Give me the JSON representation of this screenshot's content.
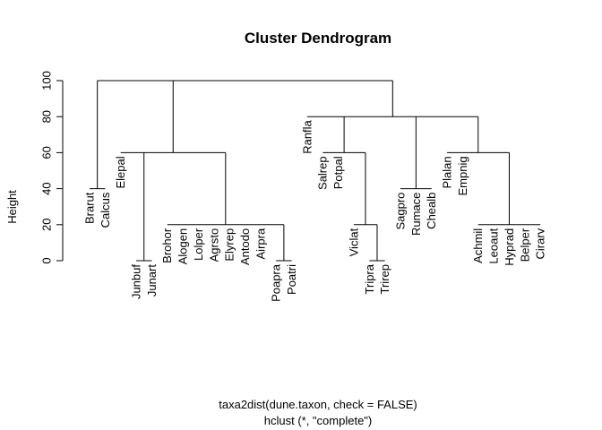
{
  "chart_data": {
    "type": "dendrogram",
    "title": "Cluster Dendrogram",
    "ylabel": "Height",
    "sub1": "taxa2dist(dune.taxon, check = FALSE)",
    "sub2": "hclust (*, \"complete\")",
    "yticks": [
      "0",
      "20",
      "40",
      "60",
      "80",
      "100"
    ],
    "ylim": [
      0,
      100
    ],
    "leaves": [
      "Brarut",
      "Calcus",
      "Elepal",
      "Junbuf",
      "Junart",
      "Brohor",
      "Alogen",
      "Lolper",
      "Agrsto",
      "Elyrep",
      "Antodo",
      "Airpra",
      "Poapra",
      "Poatri",
      "Ranfla",
      "Salrep",
      "Potpal",
      "Viclat",
      "Tripra",
      "Trirep",
      "Sagpro",
      "Rumace",
      "Chealb",
      "Plalan",
      "Empnig",
      "Achmil",
      "Leoaut",
      "Hyprad",
      "Belper",
      "Cirarv"
    ],
    "leaf_heights": [
      40,
      40,
      60,
      0,
      0,
      20,
      20,
      20,
      20,
      20,
      20,
      20,
      0,
      0,
      80,
      60,
      60,
      20,
      0,
      0,
      40,
      40,
      40,
      60,
      60,
      20,
      20,
      20,
      20,
      20
    ],
    "merges": [
      {
        "children": [
          1,
          2
        ],
        "height": 40
      },
      {
        "children": [
          4,
          5
        ],
        "height": 0
      },
      {
        "children": [
          13,
          14
        ],
        "height": 0
      },
      {
        "children": [
          6,
          7,
          8,
          9,
          10,
          11,
          12,
          103
        ],
        "height": 20
      },
      {
        "children": [
          3,
          102,
          104
        ],
        "height": 60
      },
      {
        "children": [
          19,
          20
        ],
        "height": 0
      },
      {
        "children": [
          18,
          106
        ],
        "height": 20
      },
      {
        "children": [
          16,
          17,
          107
        ],
        "height": 60
      },
      {
        "children": [
          21,
          22,
          23
        ],
        "height": 40
      },
      {
        "children": [
          26,
          27,
          28,
          29,
          30
        ],
        "height": 20
      },
      {
        "children": [
          24,
          25,
          110
        ],
        "height": 60
      },
      {
        "children": [
          15,
          108,
          109,
          111
        ],
        "height": 80
      },
      {
        "children": [
          101,
          105,
          112
        ],
        "height": 100
      }
    ]
  }
}
